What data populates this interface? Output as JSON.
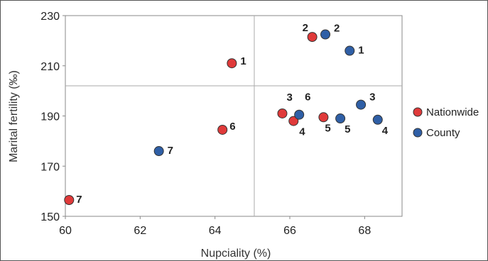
{
  "chart_data": {
    "type": "scatter",
    "title": "",
    "xlabel": "Nupciality (%)",
    "ylabel": "Marital fertility (‰)",
    "xlim": [
      60,
      69
    ],
    "ylim": [
      150,
      230
    ],
    "xticks": [
      60,
      62,
      64,
      66,
      68
    ],
    "yticks": [
      150,
      170,
      190,
      210,
      230
    ],
    "reference_lines": {
      "x": 65.05,
      "y": 202
    },
    "legend_position": "right",
    "series": [
      {
        "name": "Nationwide",
        "color": "#e03a3a",
        "points": [
          {
            "label": "1",
            "x": 64.45,
            "y": 211
          },
          {
            "label": "2",
            "x": 66.6,
            "y": 221.5
          },
          {
            "label": "3",
            "x": 65.8,
            "y": 191
          },
          {
            "label": "4",
            "x": 66.1,
            "y": 188
          },
          {
            "label": "5",
            "x": 66.9,
            "y": 189.5
          },
          {
            "label": "6",
            "x": 64.2,
            "y": 184.5
          },
          {
            "label": "7",
            "x": 60.1,
            "y": 156.5
          }
        ]
      },
      {
        "name": "County",
        "color": "#2f5fa6",
        "points": [
          {
            "label": "1",
            "x": 67.6,
            "y": 216
          },
          {
            "label": "2",
            "x": 66.95,
            "y": 222.5
          },
          {
            "label": "3",
            "x": 67.9,
            "y": 194.5
          },
          {
            "label": "4",
            "x": 68.35,
            "y": 188.5
          },
          {
            "label": "5",
            "x": 67.35,
            "y": 189
          },
          {
            "label": "6",
            "x": 66.25,
            "y": 190.5
          },
          {
            "label": "7",
            "x": 62.5,
            "y": 176
          }
        ]
      }
    ]
  }
}
